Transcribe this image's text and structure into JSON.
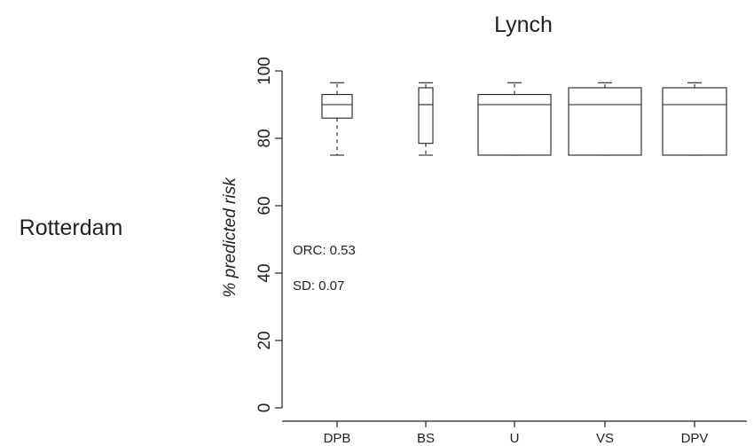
{
  "chart_data": {
    "type": "boxplot",
    "title": "Lynch",
    "row_label": "Rotterdam",
    "ylabel": "% predicted risk",
    "ylim": [
      0,
      100
    ],
    "yticks": [
      "0",
      "20",
      "40",
      "60",
      "80",
      "100"
    ],
    "categories": [
      "DPB",
      "BS",
      "U",
      "VS",
      "DPV"
    ],
    "boxes": [
      {
        "min": 75,
        "q1": 86,
        "median": 90,
        "q3": 93,
        "max": 96.5
      },
      {
        "min": 75,
        "q1": 78.5,
        "median": 90,
        "q3": 95,
        "max": 96.5
      },
      {
        "min": 75,
        "q1": 75,
        "median": 90,
        "q3": 93,
        "max": 96.5
      },
      {
        "min": 75,
        "q1": 75,
        "median": 90,
        "q3": 95,
        "max": 96.5
      },
      {
        "min": 75,
        "q1": 75,
        "median": 90,
        "q3": 95,
        "max": 96.5
      }
    ],
    "annotations": [
      "ORC: 0.53",
      "SD: 0.07"
    ],
    "colors": {
      "ink": "#231f20",
      "box_fill": "#ffffff"
    }
  }
}
